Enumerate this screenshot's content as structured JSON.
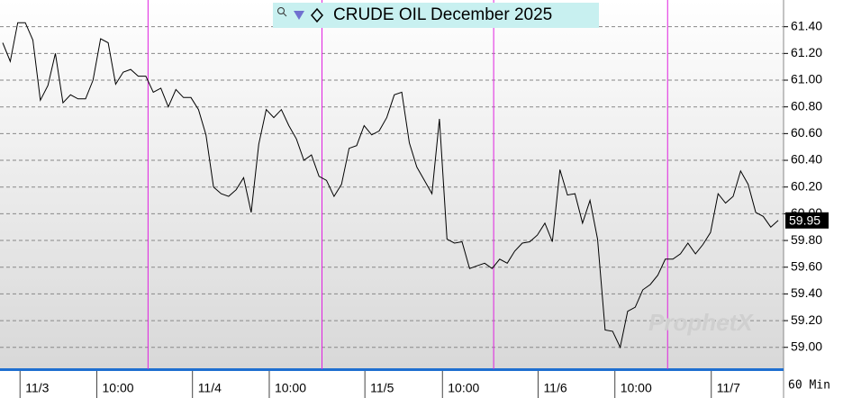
{
  "chart_data": {
    "type": "line",
    "title": "CRUDE OIL December 2025",
    "values": [
      61.28,
      61.14,
      61.43,
      61.43,
      61.3,
      60.85,
      60.96,
      61.2,
      60.83,
      60.89,
      60.86,
      60.86,
      61.0,
      61.31,
      61.28,
      60.97,
      61.06,
      61.08,
      61.03,
      61.03,
      60.91,
      60.94,
      60.8,
      60.93,
      60.87,
      60.87,
      60.78,
      60.59,
      60.2,
      60.15,
      60.13,
      60.18,
      60.27,
      60.01,
      60.52,
      60.78,
      60.72,
      60.78,
      60.66,
      60.56,
      60.4,
      60.44,
      60.28,
      60.25,
      60.13,
      60.22,
      60.49,
      60.51,
      60.66,
      60.59,
      60.62,
      60.72,
      60.89,
      60.91,
      60.53,
      60.35,
      60.25,
      60.15,
      60.71,
      59.81,
      59.78,
      59.79,
      59.59,
      59.61,
      59.63,
      59.59,
      59.66,
      59.63,
      59.72,
      59.78,
      59.79,
      59.84,
      59.93,
      59.79,
      60.33,
      60.14,
      60.15,
      59.93,
      60.1,
      59.81,
      59.13,
      59.12,
      59.0,
      59.27,
      59.3,
      59.43,
      59.47,
      59.54,
      59.66,
      59.66,
      59.7,
      59.78,
      59.7,
      59.77,
      59.86,
      60.15,
      60.08,
      60.13,
      60.32,
      60.22,
      60.01,
      59.98,
      59.9,
      59.95
    ],
    "color": "#000000",
    "xlim": [
      -0.36,
      103.7
    ],
    "xticks": [
      {
        "value": 2.3,
        "label": "11/3"
      },
      {
        "value": 12.5,
        "label": "10:00"
      },
      {
        "value": 25.2,
        "label": "11/4"
      },
      {
        "value": 35.4,
        "label": "10:00"
      },
      {
        "value": 48.1,
        "label": "11/5"
      },
      {
        "value": 58.4,
        "label": "10:00"
      },
      {
        "value": 71.1,
        "label": "11/6"
      },
      {
        "value": 81.3,
        "label": "10:00"
      },
      {
        "value": 94.1,
        "label": "11/7"
      }
    ],
    "session_breaks": [
      19.3,
      42.4,
      65.2,
      88.3
    ],
    "session_break_color": "#e020e0",
    "ylim": [
      58.85,
      61.6
    ],
    "yticks": [
      {
        "value": 59.0,
        "label": "59.00"
      },
      {
        "value": 59.2,
        "label": "59.20"
      },
      {
        "value": 59.4,
        "label": "59.40"
      },
      {
        "value": 59.6,
        "label": "59.60"
      },
      {
        "value": 59.8,
        "label": "59.80"
      },
      {
        "value": 60.0,
        "label": "60.00"
      },
      {
        "value": 60.2,
        "label": "60.20"
      },
      {
        "value": 60.4,
        "label": "60.40"
      },
      {
        "value": 60.6,
        "label": "60.60"
      },
      {
        "value": 60.8,
        "label": "60.80"
      },
      {
        "value": 61.0,
        "label": "61.00"
      },
      {
        "value": 61.2,
        "label": "61.20"
      },
      {
        "value": 61.4,
        "label": "61.40"
      }
    ],
    "grid": true,
    "last_value": {
      "value": 59.95,
      "label": "59.95"
    },
    "interval": "60 Min",
    "watermark": "ProphetX"
  }
}
